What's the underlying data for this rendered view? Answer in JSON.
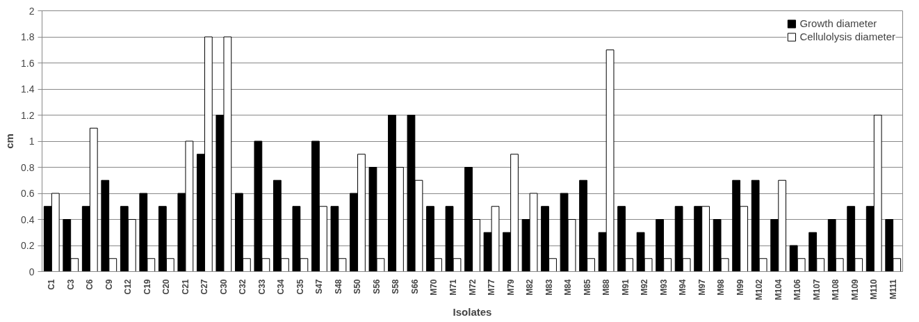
{
  "chart_data": {
    "type": "bar",
    "xlabel": "Isolates",
    "ylabel": "cm",
    "categories": [
      "C1",
      "C3",
      "C6",
      "C9",
      "C12",
      "C19",
      "C20",
      "C21",
      "C27",
      "C30",
      "C32",
      "C33",
      "C34",
      "C35",
      "S47",
      "S48",
      "S50",
      "S56",
      "S58",
      "S66",
      "M70",
      "M71",
      "M72",
      "M77",
      "M79",
      "M82",
      "M83",
      "M84",
      "M85",
      "M88",
      "M91",
      "M92",
      "M93",
      "M94",
      "M97",
      "M98",
      "M99",
      "M102",
      "M104",
      "M106",
      "M107",
      "M108",
      "M109",
      "M110",
      "M111"
    ],
    "series": [
      {
        "name": "Growth diameter",
        "color": "#000000",
        "values": [
          0.5,
          0.4,
          0.5,
          0.7,
          0.5,
          0.6,
          0.5,
          0.6,
          0.9,
          1.2,
          0.6,
          1.0,
          0.7,
          0.5,
          1.0,
          0.5,
          0.6,
          0.8,
          1.2,
          1.2,
          0.5,
          0.5,
          0.8,
          0.3,
          0.3,
          0.4,
          0.5,
          0.6,
          0.7,
          0.3,
          0.5,
          0.3,
          0.4,
          0.5,
          0.5,
          0.4,
          0.7,
          0.7,
          0.4,
          0.2,
          0.3,
          0.4,
          0.5,
          0.5,
          0.4
        ]
      },
      {
        "name": "Cellulolysis diameter",
        "color": "#ffffff",
        "values": [
          0.6,
          0.1,
          1.1,
          0.1,
          0.4,
          0.1,
          0.1,
          1.0,
          1.8,
          1.8,
          0.1,
          0.1,
          0.1,
          0.1,
          0.5,
          0.1,
          0.9,
          0.1,
          0.8,
          0.7,
          0.1,
          0.1,
          0.4,
          0.5,
          0.9,
          0.6,
          0.1,
          0.4,
          0.1,
          1.7,
          0.1,
          0.1,
          0.1,
          0.1,
          0.5,
          0.1,
          0.5,
          0.1,
          0.7,
          0.1,
          0.1,
          0.1,
          0.1,
          1.2,
          0.1
        ]
      }
    ],
    "ylim": [
      0,
      2
    ],
    "yticks": [
      0,
      0.2,
      0.4,
      0.6,
      0.8,
      1,
      1.2,
      1.4,
      1.6,
      1.8,
      2
    ],
    "grid": "y",
    "legend": "top right"
  }
}
